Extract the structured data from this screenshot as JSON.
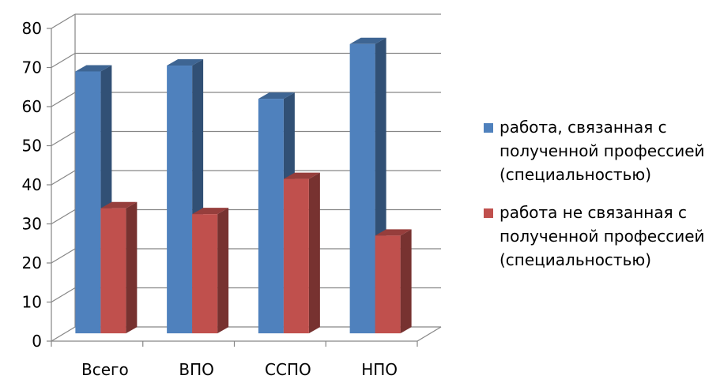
{
  "chart_data": {
    "type": "bar",
    "categories": [
      "Всего",
      "ВПО",
      "ССПО",
      "НПО"
    ],
    "series": [
      {
        "name": "работа, связанная с полученной профессией (специальностью)",
        "values": [
          67,
          68.5,
          60,
          74
        ],
        "color": "#4F81BD"
      },
      {
        "name": "работа не связанная с полученной профессией (специальностью)",
        "values": [
          32,
          30.5,
          39.5,
          25
        ],
        "color": "#C0504D"
      }
    ],
    "ylim": [
      0,
      80
    ],
    "yticks": [
      0,
      10,
      20,
      30,
      40,
      50,
      60,
      70,
      80
    ],
    "grid": true,
    "legend_position": "right",
    "style": "3d-bar"
  }
}
